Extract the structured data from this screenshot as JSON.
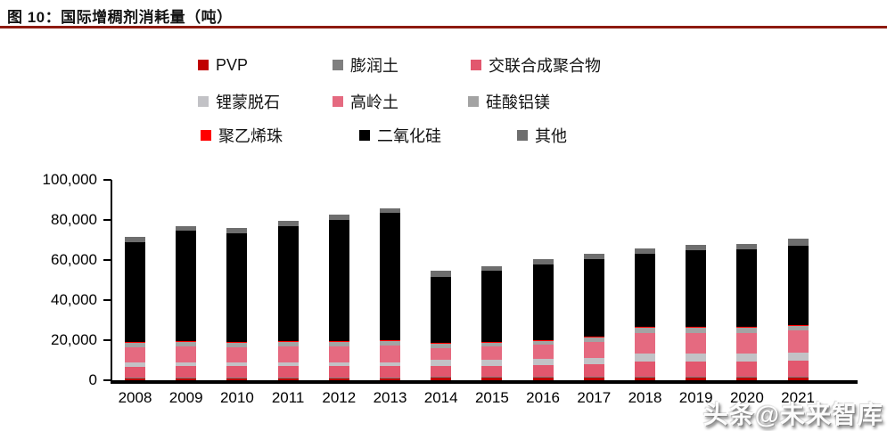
{
  "figure": {
    "title": "图 10：国际增稠剂消耗量（吨）",
    "underline_color": "#8e1a10"
  },
  "chart_data": {
    "type": "bar",
    "stacked": true,
    "title": "国际增稠剂消耗量（吨）",
    "xlabel": "",
    "ylabel": "",
    "ylim": [
      0,
      100000
    ],
    "ytick_step": 20000,
    "ytick_labels": [
      "0",
      "20,000",
      "40,000",
      "60,000",
      "80,000",
      "100,000"
    ],
    "grid": false,
    "legend_position": "top",
    "categories": [
      "2008",
      "2009",
      "2010",
      "2011",
      "2012",
      "2013",
      "2014",
      "2015",
      "2016",
      "2017",
      "2018",
      "2019",
      "2020",
      "2021"
    ],
    "series": [
      {
        "name": "PVP",
        "color": "#c00000",
        "values": [
          1200,
          1200,
          1200,
          1200,
          1200,
          1200,
          1500,
          1500,
          1500,
          1500,
          1500,
          1500,
          1500,
          1500
        ]
      },
      {
        "name": "膨润土",
        "color": "#7f7f7f",
        "values": [
          200,
          200,
          200,
          200,
          200,
          200,
          200,
          200,
          200,
          200,
          200,
          200,
          200,
          200
        ]
      },
      {
        "name": "交联合成聚合物",
        "color": "#e2576e",
        "values": [
          5400,
          5500,
          5500,
          5500,
          5500,
          5500,
          5500,
          5500,
          6000,
          6500,
          7500,
          7500,
          7500,
          8000
        ]
      },
      {
        "name": "锂蒙脱石",
        "color": "#c2c2c6",
        "values": [
          2200,
          2000,
          2000,
          2000,
          2000,
          2000,
          3000,
          3000,
          3000,
          3000,
          4000,
          4000,
          4000,
          4000
        ]
      },
      {
        "name": "高岭土",
        "color": "#e56a80",
        "values": [
          7500,
          8000,
          7500,
          8000,
          8000,
          8500,
          6000,
          6500,
          7000,
          8000,
          10500,
          10500,
          10500,
          11000
        ]
      },
      {
        "name": "硅酸铝镁",
        "color": "#a3a3a3",
        "values": [
          2300,
          2300,
          2300,
          2300,
          2300,
          2300,
          2200,
          2200,
          2200,
          2500,
          2700,
          2700,
          2700,
          2700
        ]
      },
      {
        "name": "聚乙烯珠",
        "color": "#ff0000",
        "values": [
          200,
          200,
          200,
          200,
          200,
          200,
          200,
          200,
          200,
          200,
          200,
          200,
          200,
          200
        ]
      },
      {
        "name": "二氧化硅",
        "color": "#000000",
        "values": [
          50000,
          55100,
          54300,
          57600,
          60600,
          63600,
          32900,
          35400,
          37900,
          38600,
          36700,
          38200,
          38700,
          39400
        ]
      },
      {
        "name": "其他",
        "color": "#6e6e6e",
        "values": [
          2500,
          2500,
          2800,
          2500,
          2500,
          2500,
          3000,
          2500,
          2500,
          2500,
          2700,
          2700,
          2700,
          3500
        ]
      }
    ],
    "totals": [
      71500,
      77000,
      76000,
      79500,
      82500,
      86000,
      54500,
      57000,
      60500,
      63000,
      66000,
      67500,
      68000,
      70500
    ]
  },
  "watermark": {
    "text": "头条@未来智库"
  }
}
